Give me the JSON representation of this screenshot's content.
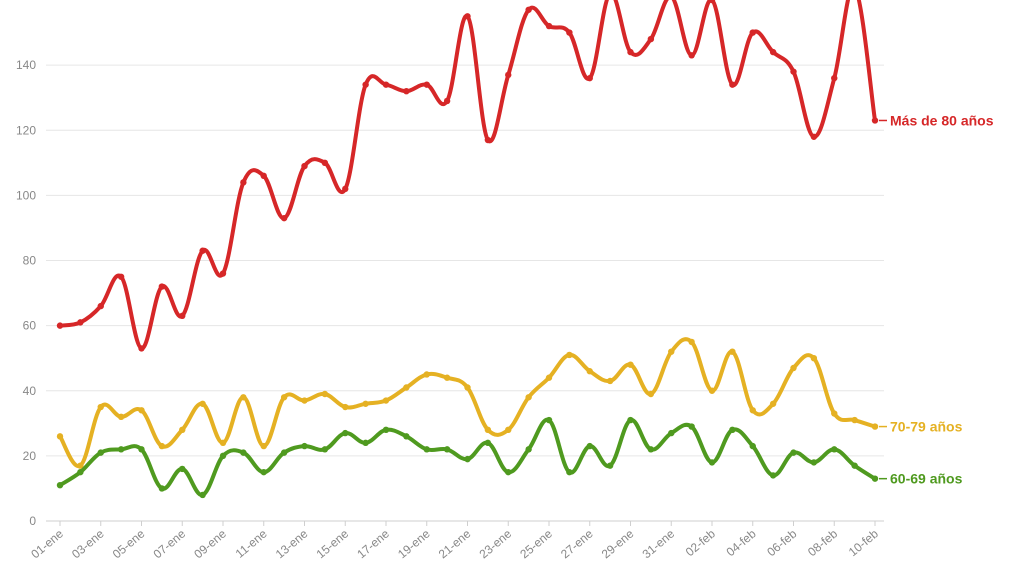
{
  "chart_data": {
    "type": "line",
    "ylim": [
      0,
      160
    ],
    "yticks": [
      0,
      20,
      40,
      60,
      80,
      100,
      120,
      140
    ],
    "grid": true,
    "x": [
      "01-ene",
      "02-ene",
      "03-ene",
      "04-ene",
      "05-ene",
      "06-ene",
      "07-ene",
      "08-ene",
      "09-ene",
      "10-ene",
      "11-ene",
      "12-ene",
      "13-ene",
      "14-ene",
      "15-ene",
      "16-ene",
      "17-ene",
      "18-ene",
      "19-ene",
      "20-ene",
      "21-ene",
      "22-ene",
      "23-ene",
      "24-ene",
      "25-ene",
      "26-ene",
      "27-ene",
      "28-ene",
      "29-ene",
      "30-ene",
      "31-ene",
      "01-feb",
      "02-feb",
      "03-feb",
      "04-feb",
      "05-feb",
      "06-feb",
      "07-feb",
      "08-feb",
      "09-feb",
      "10-feb"
    ],
    "xtick_labels": [
      "01-ene",
      "03-ene",
      "05-ene",
      "07-ene",
      "09-ene",
      "11-ene",
      "13-ene",
      "15-ene",
      "17-ene",
      "19-ene",
      "21-ene",
      "23-ene",
      "25-ene",
      "27-ene",
      "29-ene",
      "31-ene",
      "02-feb",
      "04-feb",
      "06-feb",
      "08-feb",
      "10-feb"
    ],
    "series": [
      {
        "name": "Más de 80 años",
        "color": "#d62728",
        "values": [
          60,
          61,
          66,
          75,
          53,
          72,
          63,
          83,
          76,
          104,
          106,
          93,
          109,
          110,
          102,
          134,
          134,
          132,
          134,
          129,
          155,
          117,
          137,
          157,
          152,
          150,
          136,
          162,
          144,
          148,
          161,
          143,
          160,
          134,
          150,
          144,
          138,
          118,
          136,
          164,
          123
        ]
      },
      {
        "name": "70-79 años",
        "color": "#e5b123",
        "values": [
          26,
          17,
          35,
          32,
          34,
          23,
          28,
          36,
          24,
          38,
          23,
          38,
          37,
          39,
          35,
          36,
          37,
          41,
          45,
          44,
          41,
          28,
          28,
          38,
          44,
          51,
          46,
          43,
          48,
          39,
          52,
          55,
          40,
          52,
          34,
          36,
          47,
          50,
          33,
          31,
          29
        ]
      },
      {
        "name": "60-69 años",
        "color": "#4f9a1f",
        "values": [
          11,
          15,
          21,
          22,
          22,
          10,
          16,
          8,
          20,
          21,
          15,
          21,
          23,
          22,
          27,
          24,
          28,
          26,
          22,
          22,
          19,
          24,
          15,
          22,
          31,
          15,
          23,
          17,
          31,
          22,
          27,
          29,
          18,
          28,
          23,
          14,
          21,
          18,
          22,
          17,
          13
        ]
      }
    ]
  }
}
